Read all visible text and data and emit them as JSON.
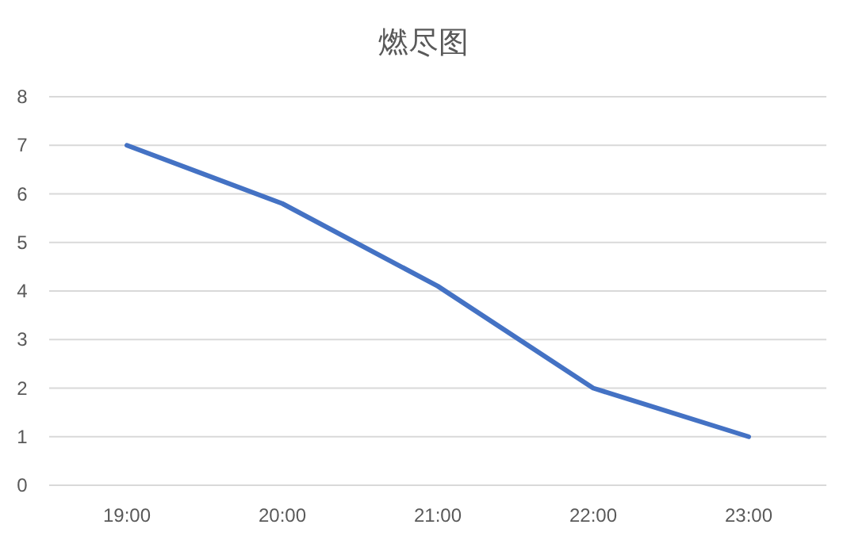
{
  "chart_data": {
    "type": "line",
    "title": "燃尽图",
    "categories": [
      "19:00",
      "20:00",
      "21:00",
      "22:00",
      "23:00"
    ],
    "values": [
      7,
      5.8,
      4.1,
      2,
      1
    ],
    "color": "#4472c4",
    "ylim": [
      0,
      8
    ],
    "yticks": [
      0,
      1,
      2,
      3,
      4,
      5,
      6,
      7,
      8
    ],
    "grid": "y"
  }
}
